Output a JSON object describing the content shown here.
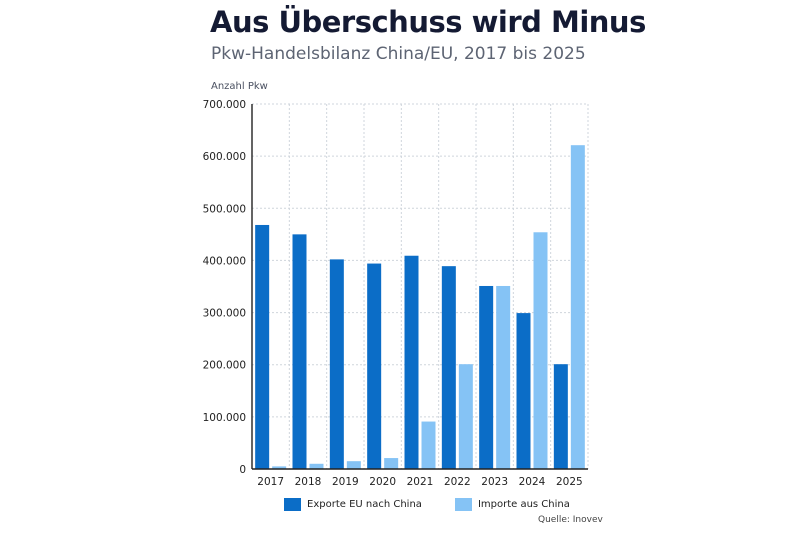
{
  "header": {
    "title": "Aus Überschuss wird Minus",
    "subtitle": "Pkw-Handelsbilanz China/EU, 2017 bis 2025",
    "unit_label": "Anzahl Pkw"
  },
  "colors": {
    "exports": "#0b6dc7",
    "imports": "#85c3f5",
    "grid": "#cfd5dc",
    "axis": "#222222"
  },
  "legend": {
    "items": [
      {
        "label": "Exporte EU nach China",
        "color": "#0b6dc7"
      },
      {
        "label": "Importe aus China",
        "color": "#85c3f5"
      }
    ]
  },
  "footer": {
    "source": "Quelle: Inovev"
  },
  "chart_data": {
    "type": "bar",
    "title": "Aus Überschuss wird Minus",
    "subtitle": "Pkw-Handelsbilanz China/EU, 2017 bis 2025",
    "ylabel": "Anzahl Pkw",
    "xlabel": "",
    "categories": [
      "2017",
      "2018",
      "2019",
      "2020",
      "2021",
      "2022",
      "2023",
      "2024",
      "2025"
    ],
    "series": [
      {
        "name": "Exporte EU nach China",
        "values": [
          468000,
          450000,
          402000,
          394000,
          409000,
          389000,
          351000,
          299000,
          201000
        ]
      },
      {
        "name": "Importe aus China",
        "values": [
          5000,
          10000,
          15000,
          21000,
          91000,
          201000,
          351000,
          454000,
          621000
        ]
      }
    ],
    "ylim": [
      0,
      700000
    ],
    "yticks": [
      0,
      100000,
      200000,
      300000,
      400000,
      500000,
      600000,
      700000
    ],
    "ytick_labels": [
      "0",
      "100.000",
      "200.000",
      "300.000",
      "400.000",
      "500.000",
      "600.000",
      "700.000"
    ],
    "grid": true,
    "legend_position": "bottom"
  }
}
